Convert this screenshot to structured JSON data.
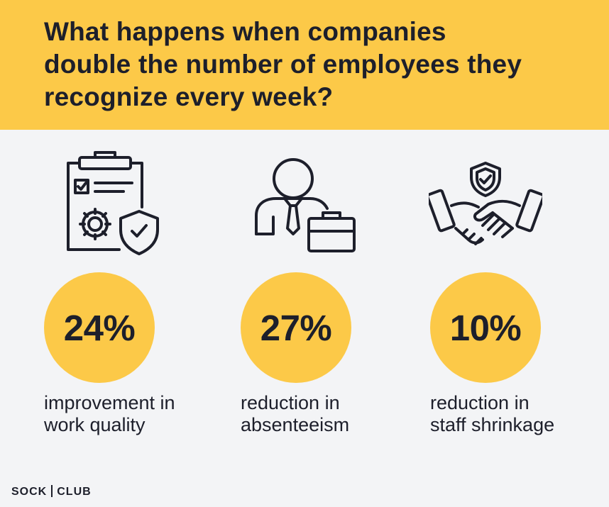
{
  "title": {
    "line1": "What happens when companies",
    "line2": "double the number of employees they",
    "line3": "recognize every week?"
  },
  "stats": [
    {
      "icon": "clipboard-gear-shield-icon",
      "value": "24%",
      "caption_line1": "improvement in",
      "caption_line2": "work quality"
    },
    {
      "icon": "employee-briefcase-icon",
      "value": "27%",
      "caption_line1": "reduction in",
      "caption_line2": "absenteeism"
    },
    {
      "icon": "handshake-shield-icon",
      "value": "10%",
      "caption_line1": "reduction in",
      "caption_line2": "staff shrinkage"
    }
  ],
  "logo": {
    "left": "SOCK",
    "right": "CLUB"
  },
  "colors": {
    "accent": "#fcc948",
    "text": "#1d1f2b",
    "background": "#f3f4f6"
  }
}
